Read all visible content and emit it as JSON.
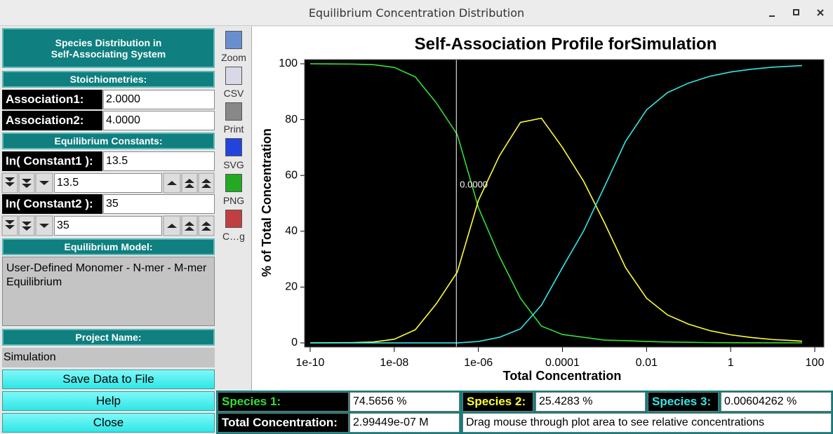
{
  "window": {
    "title": "Equilibrium Concentration Distribution"
  },
  "panel": {
    "header": [
      "Species Distribution in",
      "Self-Associating System"
    ],
    "stoichiometries": {
      "heading": "Stoichiometries:",
      "association1": {
        "label": "Association1:",
        "value": "2.0000"
      },
      "association2": {
        "label": "Association2:",
        "value": "4.0000"
      }
    },
    "constants": {
      "heading": "Equilibrium Constants:",
      "constant1": {
        "label": "In( Constant1 ):",
        "value": "13.5",
        "spinner": "13.5"
      },
      "constant2": {
        "label": "In( Constant2 ):",
        "value": "35",
        "spinner": "35"
      }
    },
    "model": {
      "heading": "Equilibrium Model:",
      "text": "User-Defined Monomer - N-mer - M-mer Equilibrium"
    },
    "project": {
      "heading": "Project Name:",
      "value": "Simulation"
    },
    "buttons": [
      "Save Data to File",
      "Help",
      "Close"
    ]
  },
  "toolbar": [
    "Zoom",
    "CSV",
    "Print",
    "SVG",
    "PNG",
    "C…g"
  ],
  "chart_data": {
    "type": "line",
    "title": "Self-Association Profile forSimulation",
    "x_label": "Total Concentration",
    "y_label": "% of Total Concentration",
    "xscale": "log",
    "background": "#000000",
    "x": [
      1e-10,
      3.16e-10,
      1e-09,
      3.16e-09,
      1e-08,
      3.16e-08,
      1e-07,
      3.16e-07,
      1e-06,
      3.16e-06,
      1e-05,
      3.16e-05,
      0.0001,
      0.000316,
      0.001,
      0.00316,
      0.01,
      0.0316,
      0.1,
      0.316,
      1,
      3.16,
      10,
      31.6,
      50
    ],
    "series": [
      {
        "color": "#33e033",
        "values": [
          100,
          99.95,
          99.9,
          99.7,
          98.7,
          95.3,
          86,
          74.6,
          48.5,
          31,
          16,
          6,
          3,
          2,
          1,
          0.8,
          0.5,
          0.3,
          0.2,
          0.1,
          0.05,
          0.03,
          0.02,
          0.01,
          0.01
        ]
      },
      {
        "color": "#ffff33",
        "values": [
          0,
          0.05,
          0.1,
          0.3,
          1.3,
          4.7,
          14,
          25.4,
          51,
          67,
          79,
          80.5,
          70,
          58,
          43,
          27,
          16,
          10,
          6.7,
          4.4,
          2.9,
          1.9,
          1.2,
          0.8,
          0.6
        ]
      },
      {
        "color": "#33e6e6",
        "values": [
          0,
          0,
          0,
          0,
          0,
          0,
          0,
          0,
          0.5,
          2,
          5,
          13.5,
          27,
          40,
          56,
          72.2,
          83.5,
          89.7,
          93.1,
          95.5,
          97.05,
          98.07,
          98.78,
          99.19,
          99.39
        ]
      }
    ],
    "xlim": [
      7.36e-11,
      164.7
    ],
    "xticks": [
      1e-10,
      {
        "value": 1e-08,
        "label": "1e-08"
      },
      {
        "value": 1e-06,
        "label": "1e-06"
      },
      0.0001,
      0.01,
      1,
      100
    ],
    "ylim": [
      -1.5,
      101.5
    ],
    "yticks": [
      0,
      20,
      40,
      60,
      80,
      100
    ],
    "cursor": {
      "x": 2.99449e-07,
      "label": "0.0000"
    }
  },
  "status": {
    "species": [
      {
        "label": "Species 1:",
        "value": "74.5656 %",
        "color": "#33e033"
      },
      {
        "label": "Species 2:",
        "value": "25.4283 %",
        "color": "#ffff33"
      },
      {
        "label": "Species 3:",
        "value": "0.00604262 %",
        "color": "#33e6e6"
      }
    ],
    "total": {
      "label": "Total Concentration:",
      "value": "2.99449e-07 M"
    },
    "message": "Drag mouse through plot area to see relative concentrations"
  }
}
